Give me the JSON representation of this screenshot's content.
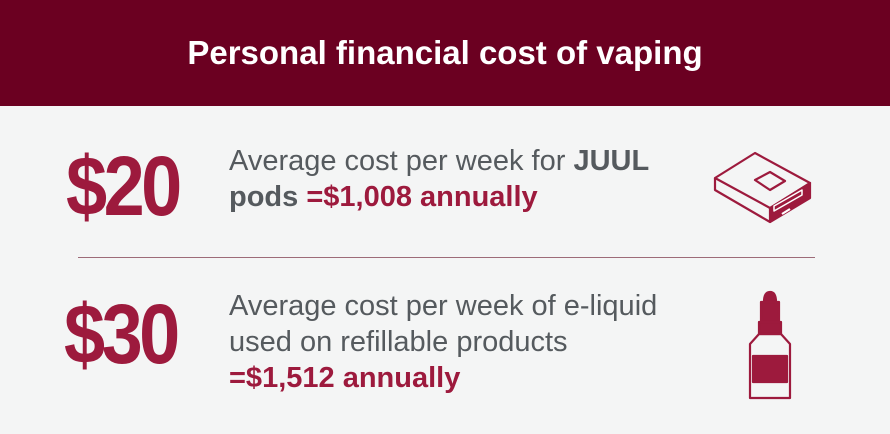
{
  "header": {
    "title": "Personal financial cost of vaping"
  },
  "items": [
    {
      "amount": "$20",
      "lines": [
        [
          "Average cost per week for",
          "JUUL"
        ],
        [
          "pods",
          "=$1,008 annually"
        ]
      ]
    },
    {
      "amount": "$30",
      "lines": [
        [
          "Average cost per week of e-liquid"
        ],
        [
          "used on refillable products"
        ],
        [
          "=$1,512 annually"
        ]
      ]
    }
  ]
}
